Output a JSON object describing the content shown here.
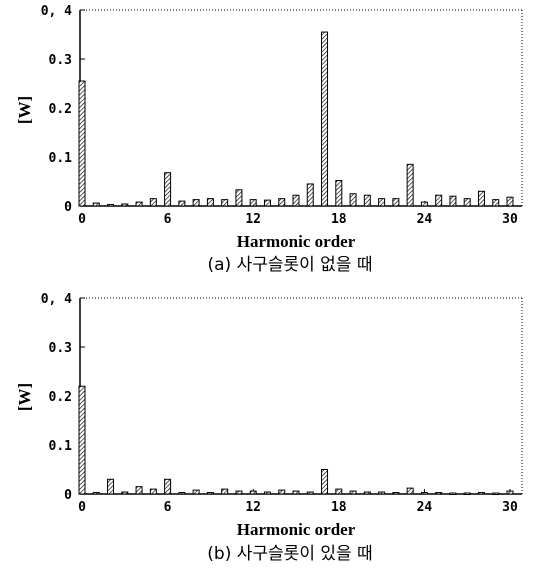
{
  "chart_data": [
    {
      "type": "bar",
      "caption": "(a) 사구슬롯이 없을 때",
      "xlabel": "Harmonic order",
      "ylabel": "[W]",
      "ylim": [
        0,
        0.4
      ],
      "xlim": [
        0,
        30
      ],
      "yticks": [
        "0",
        "0.1",
        "0.2",
        "0.3",
        "0, 4"
      ],
      "xticks": [
        "0",
        "6",
        "12",
        "18",
        "24",
        "30"
      ],
      "x": [
        0,
        1,
        2,
        3,
        4,
        5,
        6,
        7,
        8,
        9,
        10,
        11,
        12,
        13,
        14,
        15,
        16,
        17,
        18,
        19,
        20,
        21,
        22,
        23,
        24,
        25,
        26,
        27,
        28,
        29,
        30
      ],
      "values": [
        0.255,
        0.006,
        0.003,
        0.004,
        0.008,
        0.015,
        0.068,
        0.01,
        0.013,
        0.015,
        0.013,
        0.033,
        0.013,
        0.012,
        0.015,
        0.022,
        0.045,
        0.355,
        0.052,
        0.025,
        0.022,
        0.015,
        0.015,
        0.085,
        0.008,
        0.022,
        0.02,
        0.015,
        0.03,
        0.013,
        0.018
      ]
    },
    {
      "type": "bar",
      "caption": "(b) 사구슬롯이 있을 때",
      "xlabel": "Harmonic order",
      "ylabel": "[W]",
      "ylim": [
        0,
        0.4
      ],
      "xlim": [
        0,
        30
      ],
      "yticks": [
        "0",
        "0.1",
        "0.2",
        "0.3",
        "0, 4"
      ],
      "xticks": [
        "0",
        "6",
        "12",
        "18",
        "24",
        "30"
      ],
      "x": [
        0,
        1,
        2,
        3,
        4,
        5,
        6,
        7,
        8,
        9,
        10,
        11,
        12,
        13,
        14,
        15,
        16,
        17,
        18,
        19,
        20,
        21,
        22,
        23,
        24,
        25,
        26,
        27,
        28,
        29,
        30
      ],
      "values": [
        0.22,
        0.003,
        0.03,
        0.004,
        0.015,
        0.01,
        0.03,
        0.003,
        0.008,
        0.003,
        0.01,
        0.006,
        0.006,
        0.004,
        0.008,
        0.006,
        0.004,
        0.05,
        0.01,
        0.006,
        0.004,
        0.004,
        0.003,
        0.012,
        0.003,
        0.003,
        0.002,
        0.002,
        0.003,
        0.002,
        0.006
      ]
    }
  ]
}
